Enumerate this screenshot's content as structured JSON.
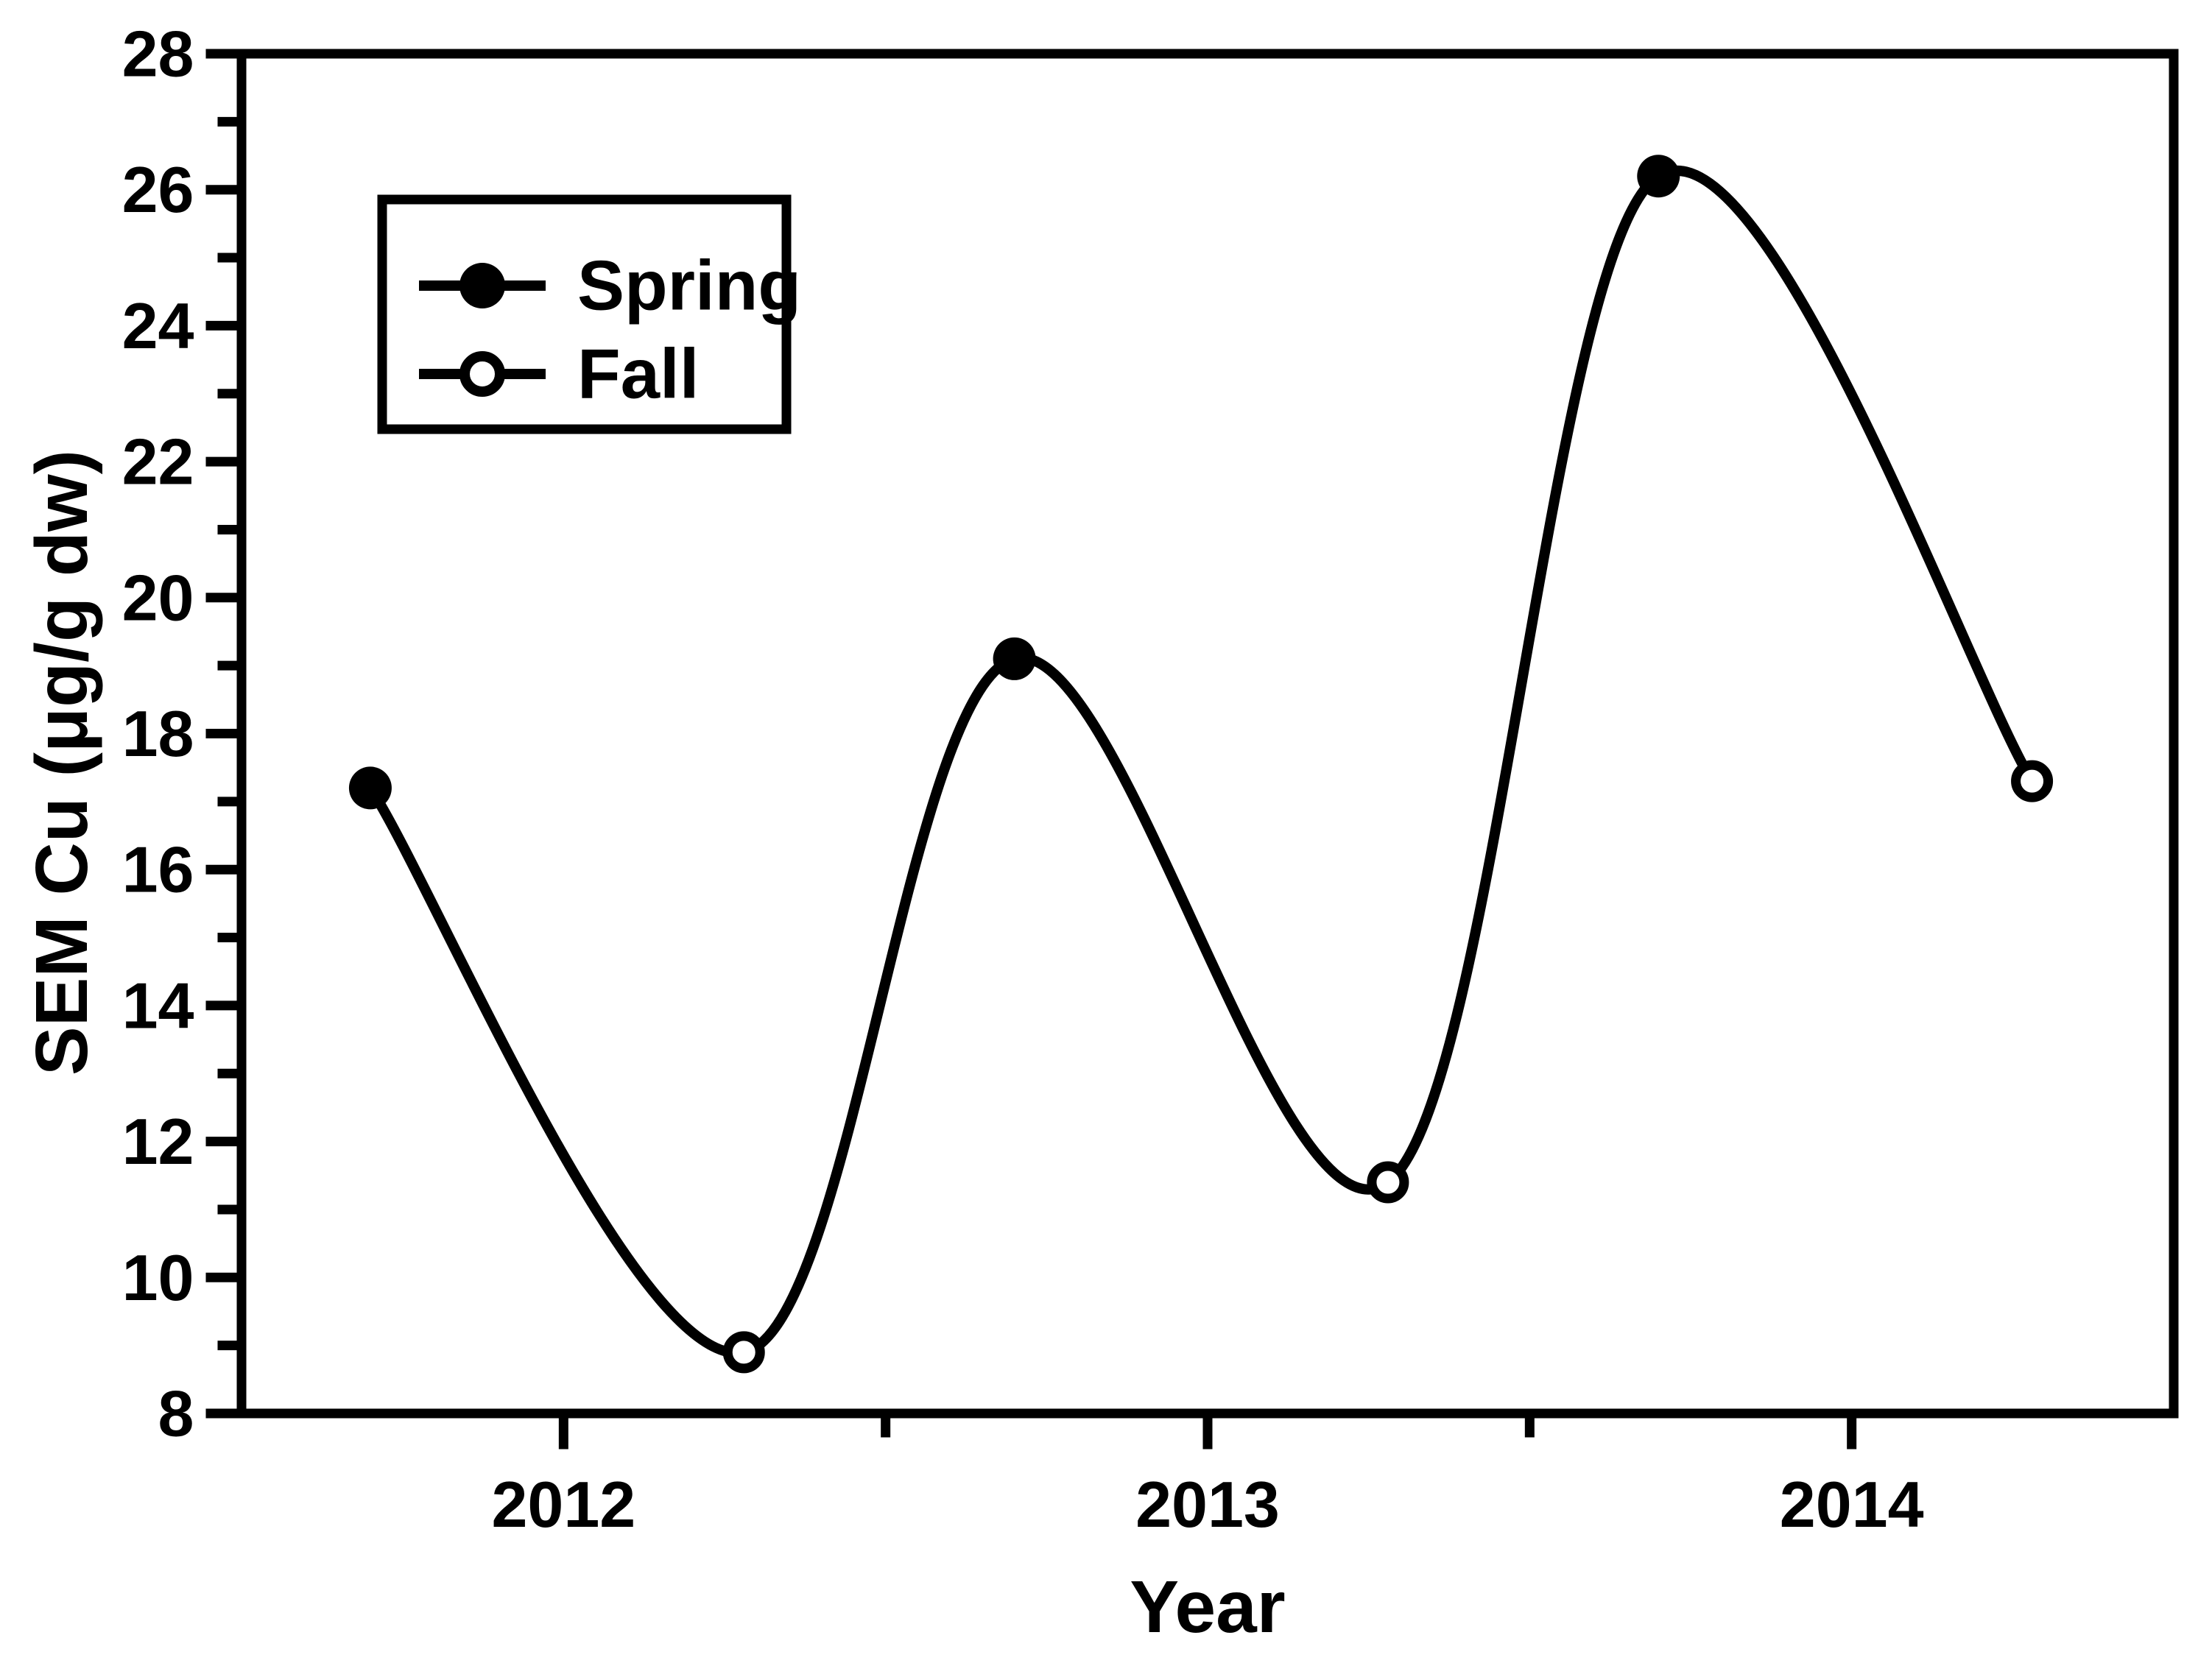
{
  "chart_data": {
    "type": "line",
    "title": "",
    "xlabel": "Year",
    "ylabel": "SEM Cu (μg/g dw)",
    "xlim": [
      2011.5,
      2014.5
    ],
    "ylim": [
      8,
      28
    ],
    "x_ticks_major": [
      2012,
      2013,
      2014
    ],
    "x_ticks_minor": [
      2012.5,
      2013.5
    ],
    "y_ticks_major": [
      8,
      10,
      12,
      14,
      16,
      18,
      20,
      22,
      24,
      26,
      28
    ],
    "y_ticks_minor": [
      9,
      11,
      13,
      15,
      17,
      19,
      21,
      23,
      25,
      27
    ],
    "grid": false,
    "frame": true,
    "line_color": "#000000",
    "background_color": "#ffffff",
    "smooth": true,
    "legend": {
      "position": "upper-left-inside",
      "items": [
        {
          "label": "Spring",
          "marker": "filled-circle"
        },
        {
          "label": "Fall",
          "marker": "open-circle"
        }
      ]
    },
    "series": [
      {
        "name": "SEM Cu",
        "connected": true,
        "points": [
          {
            "x": 2011.7,
            "y": 17.2,
            "season": "Spring",
            "marker": "filled-circle"
          },
          {
            "x": 2012.28,
            "y": 8.9,
            "season": "Fall",
            "marker": "open-circle"
          },
          {
            "x": 2012.7,
            "y": 19.1,
            "season": "Spring",
            "marker": "filled-circle"
          },
          {
            "x": 2013.28,
            "y": 11.4,
            "season": "Fall",
            "marker": "open-circle"
          },
          {
            "x": 2013.7,
            "y": 26.2,
            "season": "Spring",
            "marker": "filled-circle"
          },
          {
            "x": 2014.28,
            "y": 17.3,
            "season": "Fall",
            "marker": "open-circle"
          }
        ]
      }
    ]
  }
}
